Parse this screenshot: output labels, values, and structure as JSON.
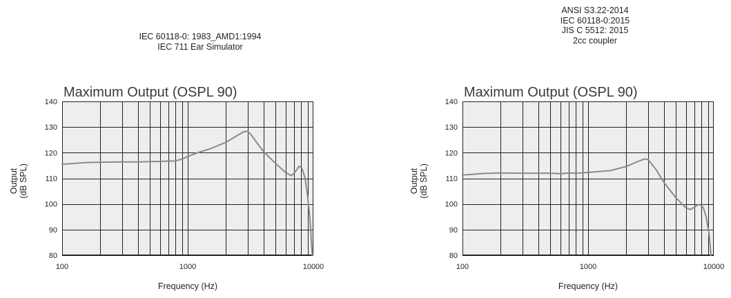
{
  "chart_data": [
    {
      "type": "line",
      "header": [
        "IEC 60118-0: 1983_AMD1:1994",
        "IEC 711 Ear Simulator"
      ],
      "title": "Maximum Output (OSPL 90)",
      "xlabel": "Frequency (Hz)",
      "ylabel": [
        "Output",
        "(dB SPL)"
      ],
      "xscale": "log",
      "xlim": [
        100,
        10000
      ],
      "ylim": [
        80,
        140
      ],
      "xticks": [
        100,
        1000,
        10000
      ],
      "xtick_labels": [
        "100",
        "1000",
        "10000"
      ],
      "yticks": [
        80,
        90,
        100,
        110,
        120,
        130,
        140
      ],
      "ytick_labels": [
        "80",
        "90",
        "100",
        "110",
        "120",
        "130",
        "140"
      ],
      "grid": true,
      "line_color": "#8a8a8a",
      "series": [
        {
          "x": [
            100,
            150,
            200,
            300,
            400,
            500,
            600,
            800,
            900,
            1000,
            1200,
            1500,
            2000,
            2500,
            2800,
            3000,
            3200,
            3500,
            4000,
            5000,
            6000,
            6700,
            7200,
            7700,
            8100,
            8600,
            9000,
            9400,
            9800
          ],
          "y": [
            115.5,
            116.1,
            116.3,
            116.4,
            116.4,
            116.5,
            116.6,
            116.8,
            117.5,
            118.5,
            120,
            121.5,
            124,
            126.8,
            128.2,
            128.3,
            127,
            124.3,
            120.5,
            115.8,
            112.3,
            111,
            112.6,
            114.7,
            114,
            110,
            103,
            94,
            80
          ]
        }
      ]
    },
    {
      "type": "line",
      "header": [
        "ANSI S3.22-2014",
        "IEC 60118-0:2015",
        "JIS C 5512: 2015",
        "2cc coupler"
      ],
      "title": "Maximum Output (OSPL 90)",
      "xlabel": "Frequency (Hz)",
      "ylabel": [
        "Output",
        "(dB SPL)"
      ],
      "xscale": "log",
      "xlim": [
        100,
        10000
      ],
      "ylim": [
        80,
        140
      ],
      "xticks": [
        100,
        1000,
        10000
      ],
      "xtick_labels": [
        "100",
        "1000",
        "10000"
      ],
      "yticks": [
        80,
        90,
        100,
        110,
        120,
        130,
        140
      ],
      "ytick_labels": [
        "80",
        "90",
        "100",
        "110",
        "120",
        "130",
        "140"
      ],
      "grid": true,
      "line_color": "#8a8a8a",
      "series": [
        {
          "x": [
            100,
            150,
            200,
            300,
            400,
            500,
            600,
            700,
            800,
            1000,
            1200,
            1500,
            2000,
            2500,
            2800,
            3000,
            3500,
            4000,
            5000,
            6000,
            6500,
            7000,
            7500,
            8000,
            8300,
            8700,
            9200,
            9500
          ],
          "y": [
            111.3,
            111.9,
            112.1,
            112,
            112,
            112,
            111.8,
            112.1,
            112,
            112.3,
            112.6,
            113,
            114.6,
            116.6,
            117.5,
            117.4,
            113.2,
            108.5,
            102.4,
            98.5,
            97.8,
            98.7,
            99.8,
            99.4,
            98.3,
            95,
            88,
            80
          ]
        }
      ]
    }
  ]
}
